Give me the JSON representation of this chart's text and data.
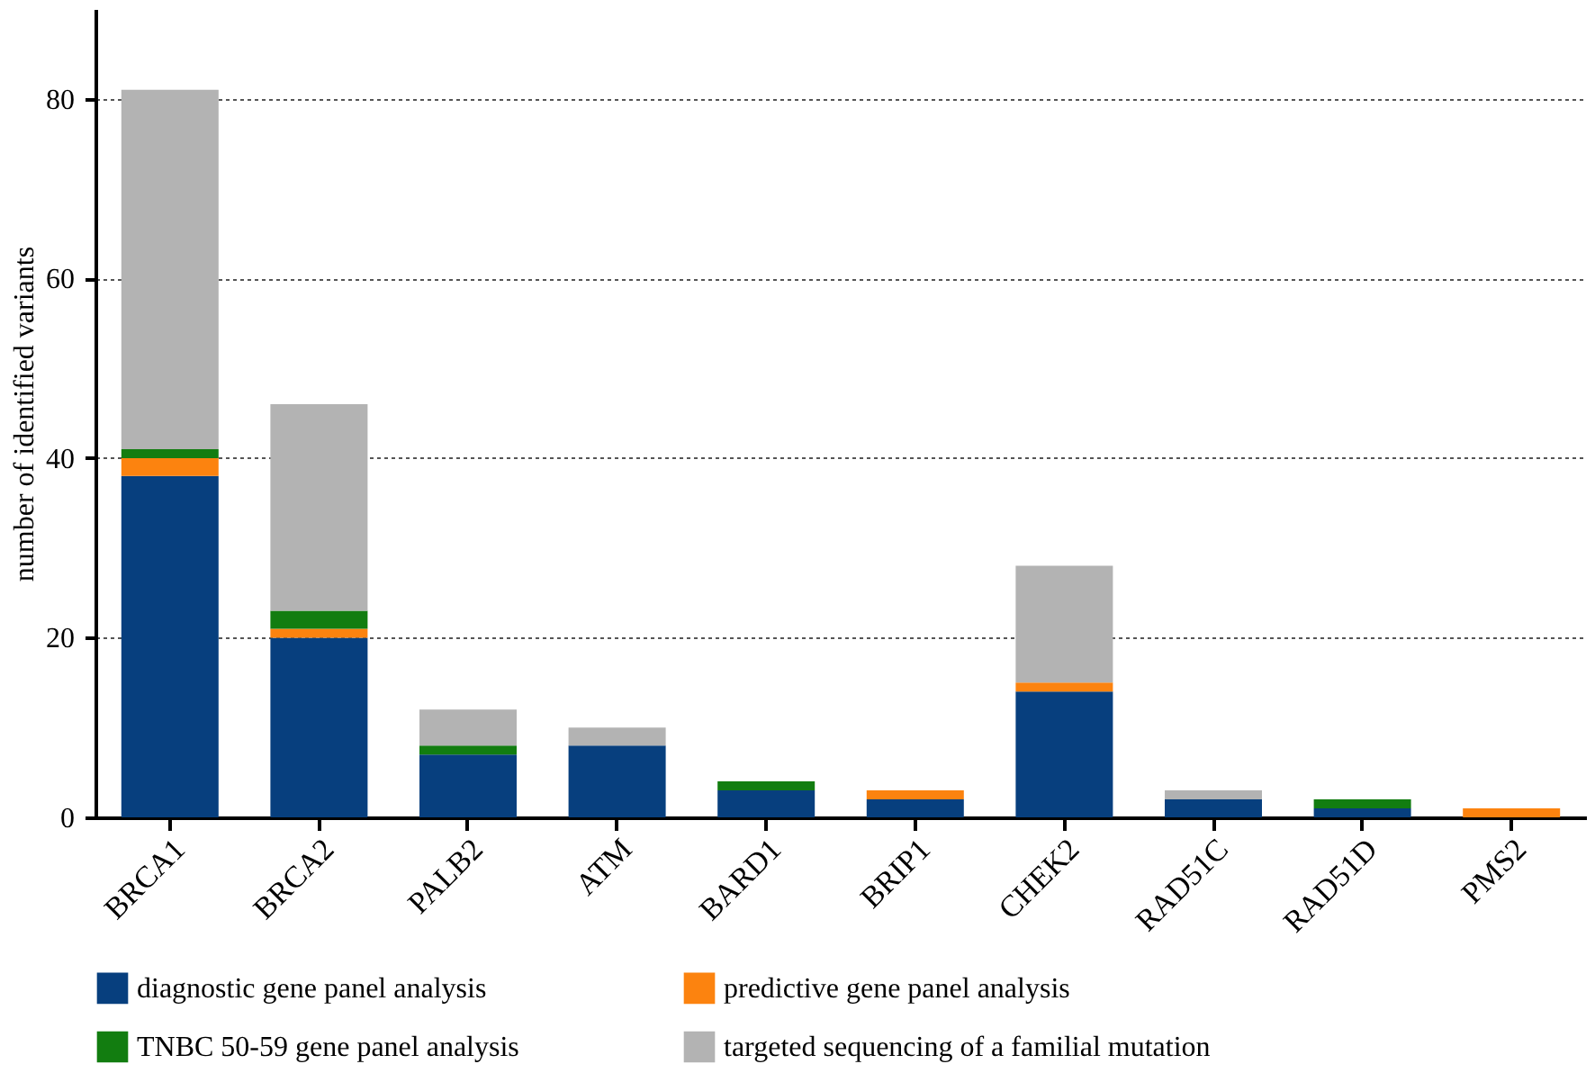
{
  "chart_data": {
    "type": "bar",
    "ylabel": "number of identified variants",
    "stacked": true,
    "grid": "y",
    "legend": "bottom",
    "categories": [
      "BRCA1",
      "BRCA2",
      "PALB2",
      "ATM",
      "BARD1",
      "BRIP1",
      "CHEK2",
      "RAD51C",
      "RAD51D",
      "PMS2"
    ],
    "ylim": [
      0,
      90
    ],
    "yticks": [
      0,
      20,
      40,
      60,
      80
    ],
    "series": [
      {
        "name": "diagnostic gene panel analysis",
        "color": "#073f7e",
        "values": [
          38,
          20,
          7,
          8,
          3,
          2,
          14,
          2,
          1,
          0
        ]
      },
      {
        "name": "predictive gene panel analysis",
        "color": "#fc830f",
        "values": [
          2,
          1,
          0,
          0,
          0,
          1,
          1,
          0,
          0,
          1
        ]
      },
      {
        "name": "TNBC 50-59 gene panel analysis",
        "color": "#127d10",
        "values": [
          1,
          2,
          1,
          0,
          1,
          0,
          0,
          0,
          1,
          0
        ]
      },
      {
        "name": "targeted sequencing of a familial mutation",
        "color": "#b3b3b3",
        "values": [
          40,
          23,
          4,
          2,
          0,
          0,
          13,
          1,
          0,
          0
        ]
      }
    ]
  }
}
